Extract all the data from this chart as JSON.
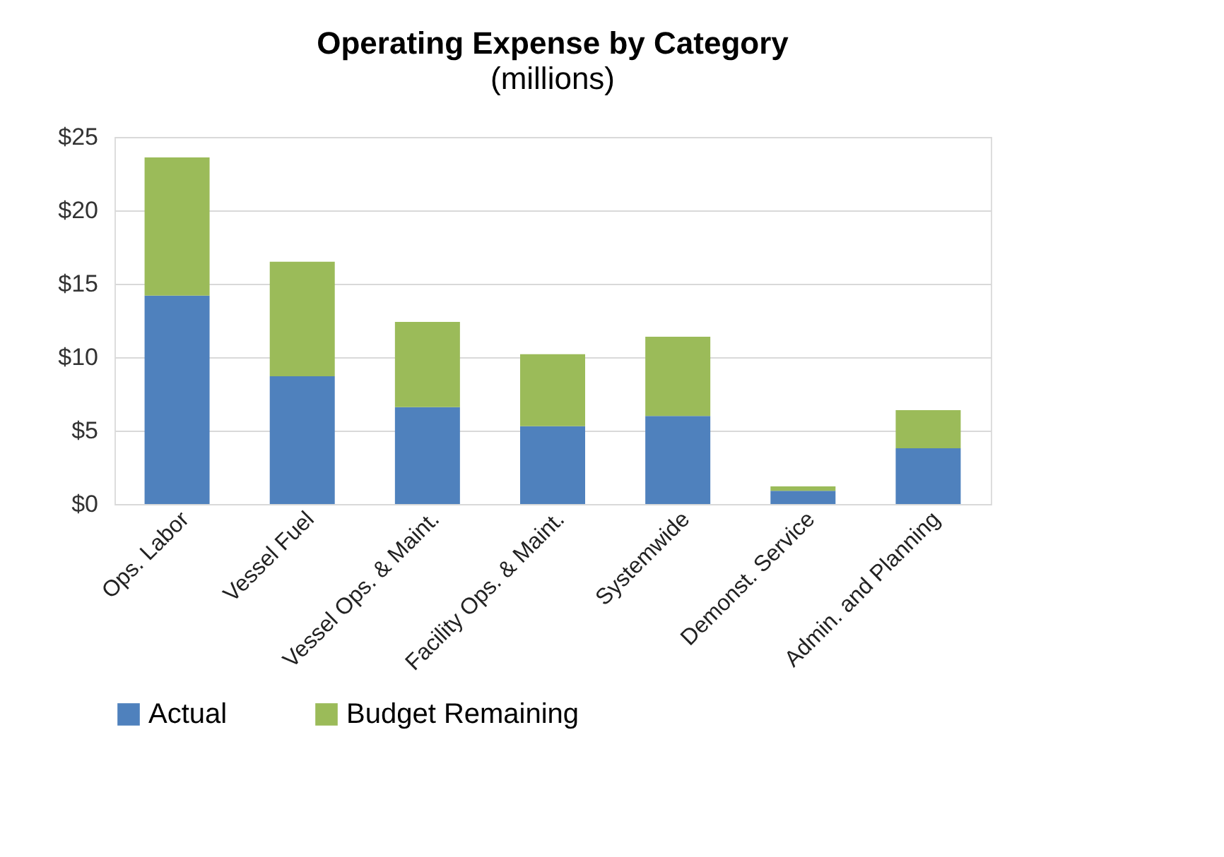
{
  "chart_data": {
    "type": "bar",
    "title": "Operating Expense by Category",
    "subtitle": "(millions)",
    "stacked": true,
    "categories": [
      "Ops. Labor",
      "Vessel Fuel",
      "Vessel Ops. & Maint.",
      "Facility Ops. & Maint.",
      "Systemwide",
      "Demonst. Service",
      "Admin. and Planning"
    ],
    "series": [
      {
        "name": "Actual",
        "color": "#4f81bd",
        "values": [
          14.2,
          8.7,
          6.6,
          5.3,
          6.0,
          0.9,
          3.8
        ]
      },
      {
        "name": "Budget Remaining",
        "color": "#9bbb59",
        "values": [
          9.4,
          7.8,
          5.8,
          4.9,
          5.4,
          0.3,
          2.6
        ]
      }
    ],
    "ylim": [
      0,
      25
    ],
    "yticks": [
      {
        "value": 0,
        "label": "$0"
      },
      {
        "value": 5,
        "label": "$5"
      },
      {
        "value": 10,
        "label": "$10"
      },
      {
        "value": 15,
        "label": "$15"
      },
      {
        "value": 20,
        "label": "$20"
      },
      {
        "value": 25,
        "label": "$25"
      }
    ],
    "grid": "y",
    "legend": "bottom"
  }
}
